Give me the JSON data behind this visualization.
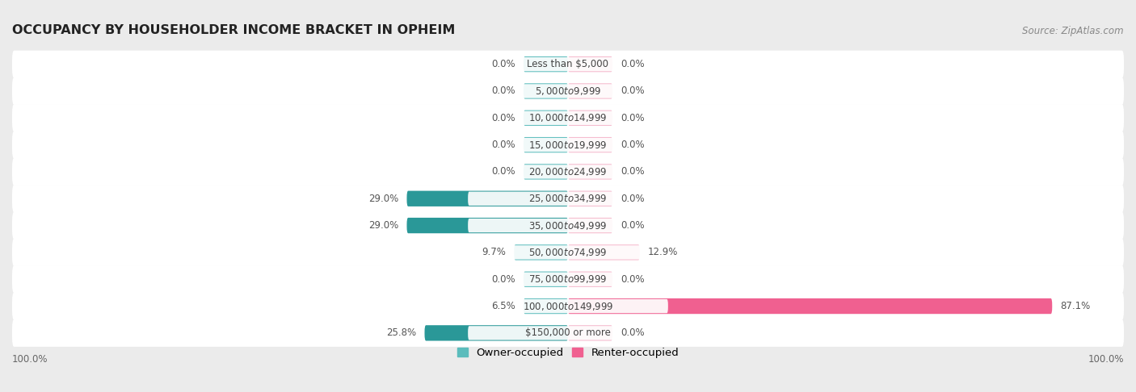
{
  "title": "OCCUPANCY BY HOUSEHOLDER INCOME BRACKET IN OPHEIM",
  "source": "Source: ZipAtlas.com",
  "categories": [
    "Less than $5,000",
    "$5,000 to $9,999",
    "$10,000 to $14,999",
    "$15,000 to $19,999",
    "$20,000 to $24,999",
    "$25,000 to $34,999",
    "$35,000 to $49,999",
    "$50,000 to $74,999",
    "$75,000 to $99,999",
    "$100,000 to $149,999",
    "$150,000 or more"
  ],
  "owner_values": [
    0.0,
    0.0,
    0.0,
    0.0,
    0.0,
    29.0,
    29.0,
    9.7,
    0.0,
    6.5,
    25.8
  ],
  "renter_values": [
    0.0,
    0.0,
    0.0,
    0.0,
    0.0,
    0.0,
    0.0,
    12.9,
    0.0,
    87.1,
    0.0
  ],
  "owner_color_light": "#5bbcbc",
  "owner_color_dark": "#2a9898",
  "renter_color_light": "#f5b8cc",
  "renter_color_bright": "#f06090",
  "bg_color": "#ebebeb",
  "row_bg_color": "#ffffff",
  "title_fontsize": 11.5,
  "source_fontsize": 8.5,
  "label_fontsize": 8.5,
  "category_fontsize": 8.5,
  "legend_fontsize": 9.5,
  "axis_label_fontsize": 8.5,
  "max_value": 100.0,
  "stub_size": 8.0,
  "bar_height": 0.58,
  "owner_dark_threshold": 15.0,
  "renter_bright_threshold": 20.0
}
